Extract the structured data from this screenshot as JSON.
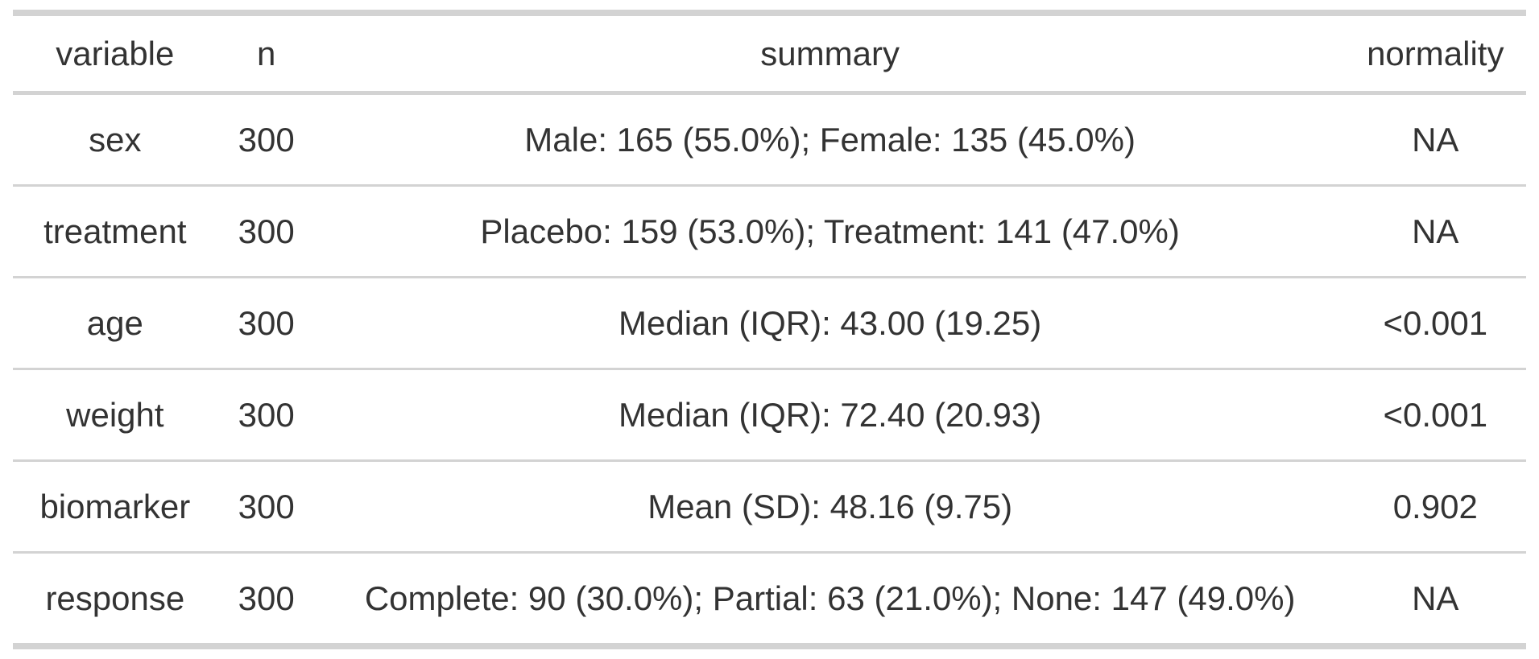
{
  "chart_data": {
    "type": "table",
    "columns": [
      "variable",
      "n",
      "summary",
      "normality"
    ],
    "rows": [
      {
        "variable": "sex",
        "n": "300",
        "summary": "Male: 165 (55.0%); Female: 135 (45.0%)",
        "normality": "NA"
      },
      {
        "variable": "treatment",
        "n": "300",
        "summary": "Placebo: 159 (53.0%); Treatment: 141 (47.0%)",
        "normality": "NA"
      },
      {
        "variable": "age",
        "n": "300",
        "summary": "Median (IQR): 43.00 (19.25)",
        "normality": "<0.001"
      },
      {
        "variable": "weight",
        "n": "300",
        "summary": "Median (IQR): 72.40 (20.93)",
        "normality": "<0.001"
      },
      {
        "variable": "biomarker",
        "n": "300",
        "summary": "Mean (SD): 48.16 (9.75)",
        "normality": "0.902"
      },
      {
        "variable": "response",
        "n": "300",
        "summary": "Complete: 90 (30.0%); Partial: 63 (21.0%); None: 147 (49.0%)",
        "normality": "NA"
      }
    ],
    "title": "",
    "layout": {
      "grid": "horizontal-rules-only",
      "alignment": "center"
    }
  },
  "colors": {
    "background": "#ffffff",
    "text": "#333333",
    "rule": "#d3d3d3"
  }
}
